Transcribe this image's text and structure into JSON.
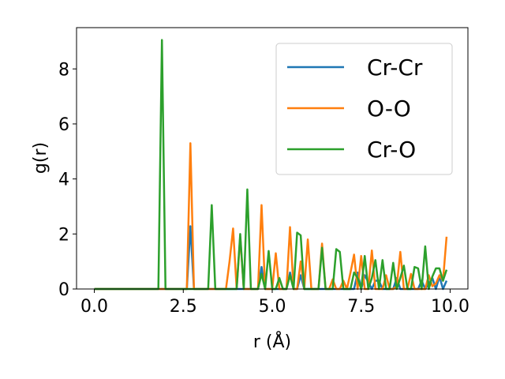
{
  "chart_data": {
    "type": "line",
    "xlabel": "r (Å)",
    "ylabel": "g(r)",
    "xlim": [
      -0.5,
      10.5
    ],
    "ylim": [
      0,
      9.5
    ],
    "xticks": [
      0.0,
      2.5,
      5.0,
      7.5,
      10.0
    ],
    "xtick_labels": [
      "0.0",
      "2.5",
      "5.0",
      "7.5",
      "10.0"
    ],
    "yticks": [
      0,
      2,
      4,
      6,
      8
    ],
    "ytick_labels": [
      "0",
      "2",
      "4",
      "6",
      "8"
    ],
    "grid": false,
    "legend_position": "top-right",
    "series": [
      {
        "name": "Cr-Cr",
        "color": "#1f77b4",
        "x": [
          0.0,
          2.5,
          2.6,
          2.7,
          2.8,
          2.9,
          4.6,
          4.7,
          4.8,
          5.4,
          5.5,
          5.6,
          5.7,
          5.8,
          5.9,
          7.3,
          7.4,
          7.5,
          7.6,
          7.8,
          7.9,
          8.0,
          8.1,
          8.4,
          8.5,
          8.6,
          9.1,
          9.2,
          9.3,
          9.4,
          9.5,
          9.6,
          9.7,
          9.8,
          9.9
        ],
        "y": [
          0,
          0,
          0,
          2.28,
          0,
          0,
          0,
          0.8,
          0,
          0,
          0.6,
          0,
          0,
          0.5,
          0,
          0,
          0.6,
          0,
          0.5,
          0,
          0.3,
          0.3,
          0,
          0,
          0.4,
          0,
          0,
          0.3,
          0,
          0.2,
          0.4,
          0,
          0.45,
          0,
          0.3
        ]
      },
      {
        "name": "O-O",
        "color": "#ff7f0e",
        "x": [
          0.0,
          2.5,
          2.6,
          2.7,
          2.8,
          2.9,
          3.7,
          3.8,
          3.9,
          4.0,
          4.1,
          4.2,
          4.3,
          4.4,
          4.5,
          4.6,
          4.7,
          4.8,
          4.9,
          5.0,
          5.1,
          5.2,
          5.3,
          5.4,
          5.5,
          5.6,
          5.7,
          5.8,
          5.9,
          6.0,
          6.1,
          6.2,
          6.3,
          6.4,
          6.5,
          6.6,
          6.7,
          6.8,
          6.9,
          7.0,
          7.1,
          7.2,
          7.3,
          7.4,
          7.5,
          7.6,
          7.7,
          7.8,
          7.9,
          8.0,
          8.1,
          8.2,
          8.3,
          8.4,
          8.5,
          8.6,
          8.7,
          8.8,
          8.9,
          9.0,
          9.1,
          9.2,
          9.3,
          9.4,
          9.5,
          9.6,
          9.7,
          9.8,
          9.9
        ],
        "y": [
          0,
          0,
          0,
          5.3,
          0,
          0,
          0,
          1.0,
          2.2,
          0,
          1.9,
          0,
          0,
          0,
          0,
          0,
          3.05,
          0,
          0,
          0,
          1.3,
          0,
          0,
          0,
          2.25,
          0,
          0,
          1.0,
          0,
          1.8,
          0,
          0,
          0,
          1.65,
          0,
          0,
          0.35,
          0,
          0,
          0.3,
          0,
          0.6,
          1.25,
          0,
          1.2,
          0,
          0,
          1.4,
          0,
          0,
          0,
          0.5,
          0,
          0,
          0.1,
          1.35,
          0,
          0,
          0.55,
          0,
          0,
          0,
          0,
          0.5,
          0.1,
          0.2,
          0.5,
          0.3,
          1.9
        ]
      },
      {
        "name": "Cr-O",
        "color": "#2ca02c",
        "x": [
          0.0,
          1.8,
          1.9,
          2.0,
          2.1,
          3.2,
          3.3,
          3.4,
          4.0,
          4.1,
          4.2,
          4.3,
          4.4,
          4.5,
          4.6,
          4.7,
          4.8,
          4.9,
          5.0,
          5.1,
          5.2,
          5.3,
          5.4,
          5.5,
          5.6,
          5.7,
          5.8,
          5.9,
          6.0,
          6.1,
          6.2,
          6.3,
          6.4,
          6.5,
          6.6,
          6.7,
          6.8,
          6.9,
          7.0,
          7.1,
          7.2,
          7.3,
          7.4,
          7.5,
          7.6,
          7.7,
          7.8,
          7.9,
          8.0,
          8.1,
          8.2,
          8.3,
          8.4,
          8.5,
          8.6,
          8.7,
          8.8,
          8.9,
          9.0,
          9.1,
          9.2,
          9.3,
          9.4,
          9.5,
          9.6,
          9.7,
          9.8,
          9.9
        ],
        "y": [
          0,
          0,
          9.05,
          0,
          0,
          0,
          3.05,
          0,
          0,
          2.0,
          0,
          3.62,
          0,
          0,
          0,
          0.55,
          0,
          1.38,
          0,
          0,
          0.4,
          0,
          0,
          0.5,
          0,
          2.05,
          1.95,
          0,
          0,
          0,
          0,
          0,
          1.5,
          0,
          0,
          0,
          1.45,
          1.35,
          0,
          0,
          0,
          0.6,
          0.4,
          0,
          1.2,
          0,
          0.4,
          1.05,
          0,
          1.05,
          0,
          0,
          0.95,
          0,
          0.4,
          0.85,
          0,
          0,
          0.8,
          0.75,
          0,
          1.55,
          0,
          0.45,
          0.75,
          0.75,
          0.3,
          0.7
        ]
      }
    ]
  }
}
